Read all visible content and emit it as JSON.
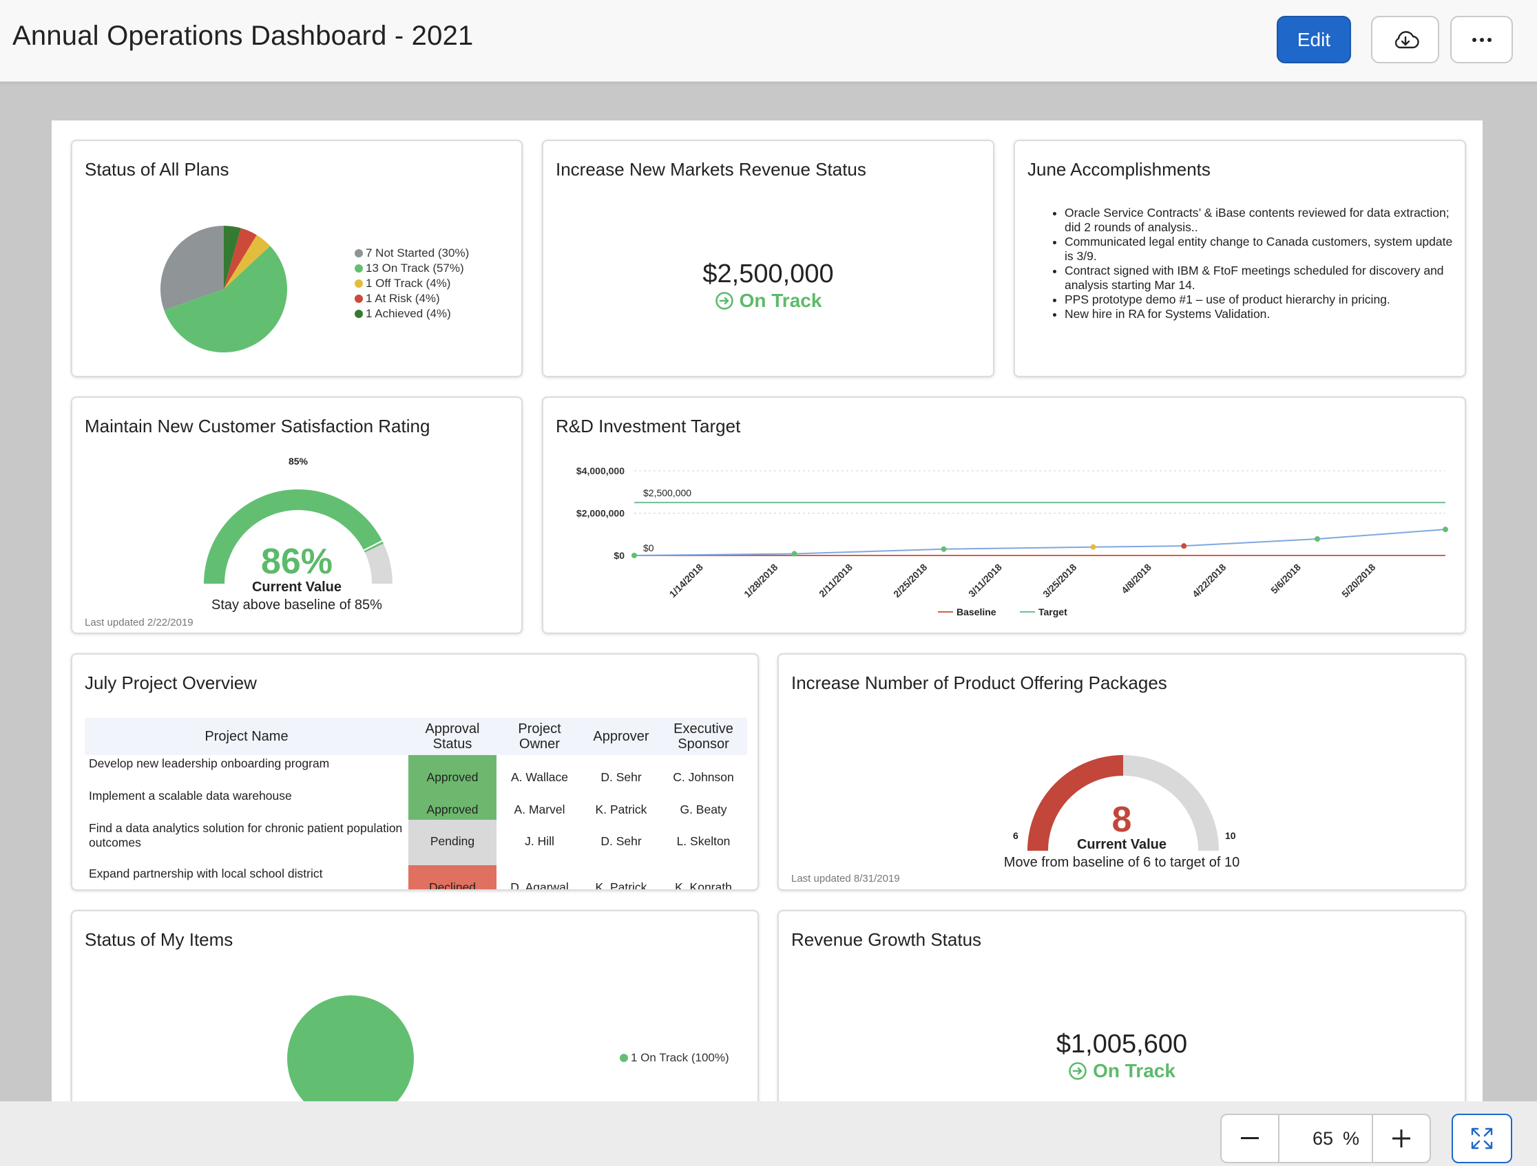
{
  "header": {
    "title": "Annual Operations Dashboard - 2021",
    "edit_label": "Edit"
  },
  "widgets": {
    "status_all_plans": {
      "title": "Status of All Plans",
      "legend": [
        {
          "label": "7 Not Started (30%)",
          "color": "#8f9496"
        },
        {
          "label": "13 On Track (57%)",
          "color": "#62bf72"
        },
        {
          "label": "1 Off Track (4%)",
          "color": "#e2bc3c"
        },
        {
          "label": "1 At Risk (4%)",
          "color": "#cc4a3a"
        },
        {
          "label": "1 Achieved (4%)",
          "color": "#357a32"
        }
      ]
    },
    "new_markets_revenue": {
      "title": "Increase New Markets Revenue Status",
      "value": "$2,500,000",
      "status": "On Track"
    },
    "june_accomplishments": {
      "title": "June Accomplishments",
      "items": [
        "Oracle Service Contracts’ & iBase contents reviewed for data extraction; did 2 rounds of analysis..",
        "Communicated legal entity change to Canada customers, system update is 3/9.",
        "Contract signed with IBM & FtoF meetings scheduled for discovery and analysis starting Mar 14.",
        "PPS prototype demo #1 – use of product hierarchy in pricing.",
        "New hire in RA for Systems Validation."
      ]
    },
    "customer_satisfaction": {
      "title": "Maintain New Customer Satisfaction Rating",
      "baseline_marker": "85%",
      "value": "86%",
      "value_caption": "Current Value",
      "description": "Stay above baseline of 85%",
      "updated": "Last updated 2/22/2019"
    },
    "rd_investment": {
      "title": "R&D Investment Target",
      "legend": [
        {
          "label": "Baseline",
          "color": "#d0604c"
        },
        {
          "label": "Target",
          "color": "#6fbf8f"
        }
      ]
    },
    "july_projects": {
      "title": "July Project Overview",
      "columns": [
        "Project Name",
        "Approval Status",
        "Project Owner",
        "Approver",
        "Executive Sponsor"
      ],
      "rows": [
        {
          "name": "Develop new leadership onboarding program",
          "status": "Approved",
          "owner": "A. Wallace",
          "approver": "D. Sehr",
          "sponsor": "C. Johnson"
        },
        {
          "name": "Implement a scalable data warehouse",
          "status": "Approved",
          "owner": "A. Marvel",
          "approver": "K. Patrick",
          "sponsor": "G. Beaty"
        },
        {
          "name": "Find a data analytics solution for chronic patient population outcomes",
          "status": "Pending",
          "owner": "J. Hill",
          "approver": "D. Sehr",
          "sponsor": "L. Skelton"
        },
        {
          "name": "Expand partnership with local school district",
          "status": "Declined",
          "owner": "D. Agarwal",
          "approver": "K. Patrick",
          "sponsor": "K. Konrath"
        }
      ]
    },
    "product_offerings": {
      "title": "Increase Number of Product Offering Packages",
      "min_label": "6",
      "max_label": "10",
      "value": "8",
      "value_caption": "Current Value",
      "description": "Move from baseline of 6 to target of 10",
      "updated": "Last updated 8/31/2019"
    },
    "status_my_items": {
      "title": "Status of My Items",
      "legend": [
        {
          "label": "1 On Track (100%)",
          "color": "#62bf72"
        }
      ]
    },
    "revenue_growth": {
      "title": "Revenue Growth Status",
      "value": "$1,005,600",
      "status": "On Track"
    }
  },
  "chart_data": [
    {
      "type": "pie",
      "title": "Status of All Plans",
      "categories": [
        "Not Started",
        "On Track",
        "Off Track",
        "At Risk",
        "Achieved"
      ],
      "values": [
        7,
        13,
        1,
        1,
        1
      ],
      "colors": [
        "#8f9496",
        "#62bf72",
        "#e2bc3c",
        "#cc4a3a",
        "#357a32"
      ],
      "legend": "right"
    },
    {
      "type": "line",
      "title": "R&D Investment Target",
      "x_ticks": [
        "1/14/2018",
        "1/28/2018",
        "2/11/2018",
        "2/25/2018",
        "3/11/2018",
        "3/25/2018",
        "4/8/2018",
        "4/22/2018",
        "5/6/2018",
        "5/20/2018"
      ],
      "y_ticks": [
        "$4,000,000",
        "$2,000,000",
        "$0"
      ],
      "ylim": [
        0,
        4000000
      ],
      "xlim": [
        "2018-01-01",
        "2018-06-02"
      ],
      "grid": true,
      "legend": "bottom",
      "annotations": [
        "$2,500,000",
        "$0"
      ],
      "series": [
        {
          "name": "Baseline",
          "color": "#d0604c",
          "x": [
            "2018-01-01",
            "2018-06-02"
          ],
          "values": [
            0,
            0
          ]
        },
        {
          "name": "Target",
          "color": "#6fbf8f",
          "x": [
            "2018-01-01",
            "2018-06-02"
          ],
          "values": [
            2500000,
            2500000
          ]
        },
        {
          "color": "#7fa7e3",
          "x": [
            "2018-01-01",
            "2018-01-31",
            "2018-02-28",
            "2018-03-28",
            "2018-04-14",
            "2018-05-09",
            "2018-06-02"
          ],
          "values": [
            0,
            80000,
            300000,
            400000,
            450000,
            780000,
            1230000
          ],
          "marker_colors": [
            "#62bf72",
            "#62bf72",
            "#62bf72",
            "#e2bc3c",
            "#cc4a3a",
            "#62bf72",
            "#62bf72"
          ]
        }
      ]
    },
    {
      "type": "pie",
      "title": "Status of My Items",
      "categories": [
        "On Track"
      ],
      "values": [
        1
      ],
      "colors": [
        "#62bf72"
      ],
      "legend": "right"
    }
  ],
  "gauges": {
    "customer_satisfaction": {
      "min": 0,
      "max": 100,
      "value": 86,
      "baseline": 85,
      "fill_color": "#62bf72",
      "track_color": "#d9d9d9"
    },
    "product_offerings": {
      "min": 6,
      "max": 10,
      "value": 8,
      "fill_color": "#c2463a",
      "track_color": "#d9d9d9"
    }
  },
  "toolbar": {
    "zoom_value": "65",
    "zoom_unit": "%"
  },
  "colors": {
    "accent": "#1f67c8",
    "on_track": "#5cba6a",
    "danger": "#c2463a"
  }
}
